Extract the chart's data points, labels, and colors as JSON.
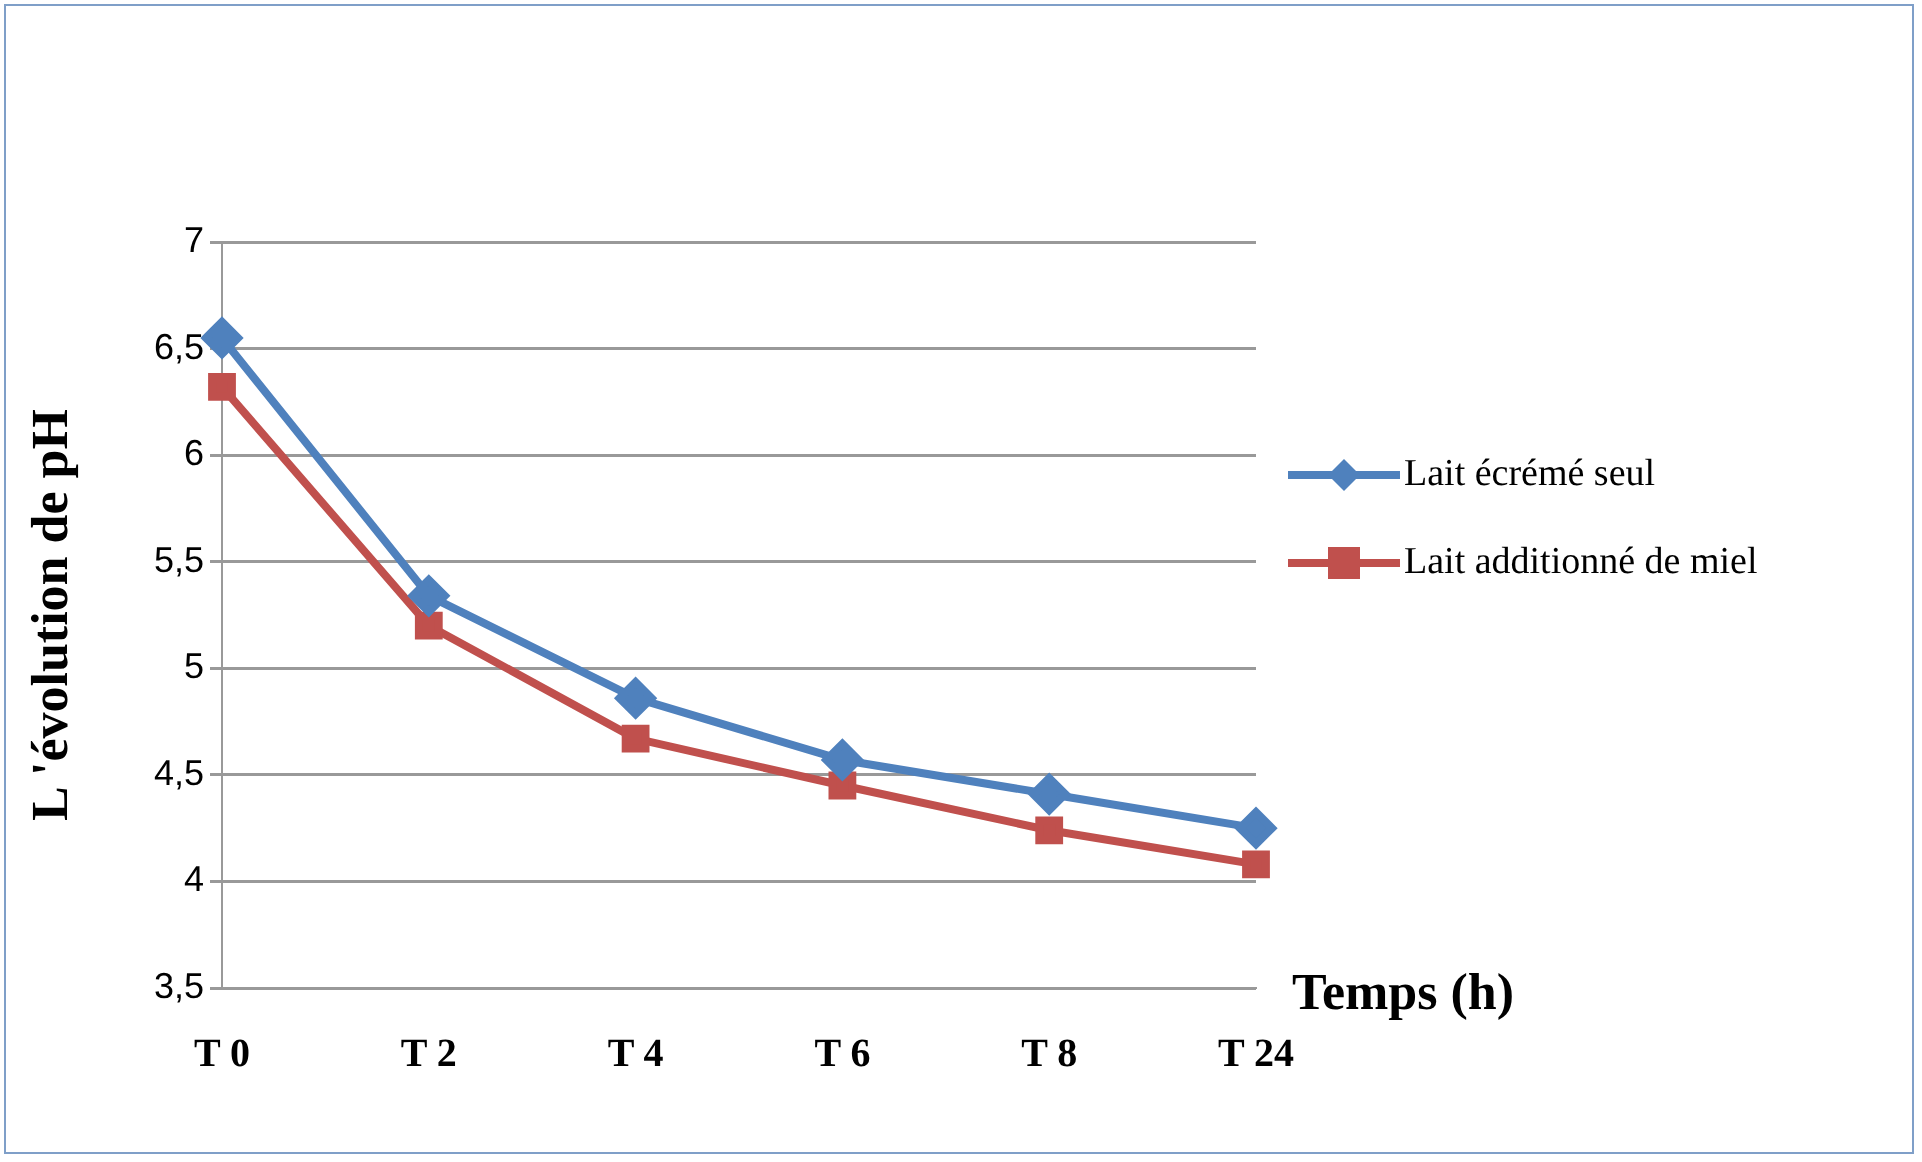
{
  "chart_data": {
    "type": "line",
    "ylabel": "L 'évolution de pH",
    "xlabel": "Temps (h)",
    "categories": [
      "T 0",
      "T 2",
      "T 4",
      "T 6",
      "T 8",
      "T 24"
    ],
    "series": [
      {
        "name": "Lait écrémé seul",
        "color": "#4f81bd",
        "marker": "diamond",
        "values": [
          6.55,
          5.34,
          4.86,
          4.57,
          4.41,
          4.25
        ]
      },
      {
        "name": "Lait additionné de miel",
        "color": "#c0504d",
        "marker": "square",
        "values": [
          6.32,
          5.2,
          4.67,
          4.45,
          4.24,
          4.08
        ]
      }
    ],
    "ylim": [
      3.5,
      7
    ],
    "yticks": [
      {
        "value": 3.5,
        "label": "3,5"
      },
      4,
      {
        "value": 4.5,
        "label": "4,5"
      },
      5,
      {
        "value": 5.5,
        "label": "5,5"
      },
      6,
      {
        "value": 6.5,
        "label": "6,5"
      },
      7
    ],
    "grid": "y",
    "legend": "right",
    "line_style": "solid"
  }
}
